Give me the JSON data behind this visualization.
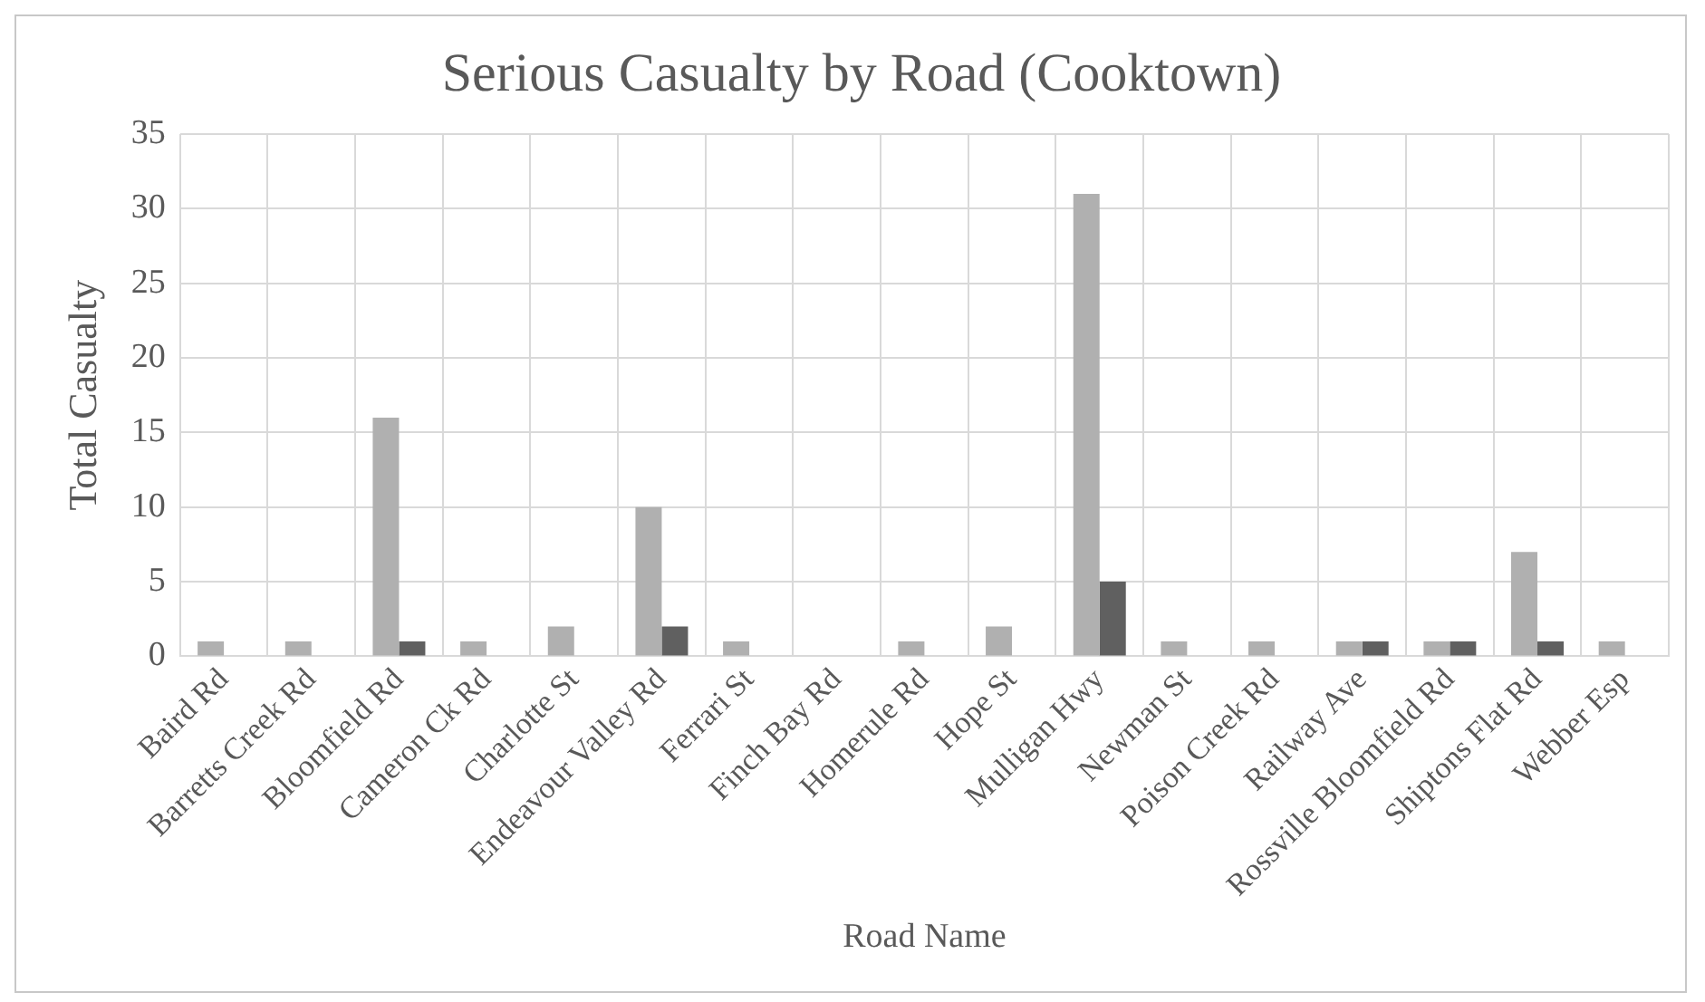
{
  "chart_data": {
    "type": "bar",
    "title": "Serious Casualty by Road (Cooktown)",
    "xlabel": "Road Name",
    "ylabel": "Total Casualty",
    "categories": [
      "Baird Rd",
      "Barretts Creek Rd",
      "Bloomfield Rd",
      "Cameron Ck Rd",
      "Charlotte St",
      "Endeavour Valley Rd",
      "Ferrari St",
      "Finch Bay Rd",
      "Homerule Rd",
      "Hope St",
      "Mulligan Hwy",
      "Newman St",
      "Poison Creek Rd",
      "Railway Ave",
      "Rossville Bloomfield Rd",
      "Shiptons Flat Rd",
      "Webber Esp"
    ],
    "series": [
      {
        "color": "#b0b0b0",
        "values": [
          1,
          1,
          16,
          1,
          2,
          10,
          1,
          null,
          1,
          2,
          31,
          1,
          1,
          1,
          1,
          7,
          1
        ]
      },
      {
        "color": "#606060",
        "values": [
          null,
          null,
          1,
          null,
          null,
          2,
          null,
          null,
          null,
          null,
          5,
          null,
          null,
          1,
          1,
          1,
          null
        ]
      }
    ],
    "ylim": [
      0,
      35
    ],
    "yticks": [
      0,
      5,
      10,
      15,
      20,
      25,
      30,
      35
    ],
    "grid": true,
    "legend": false
  }
}
